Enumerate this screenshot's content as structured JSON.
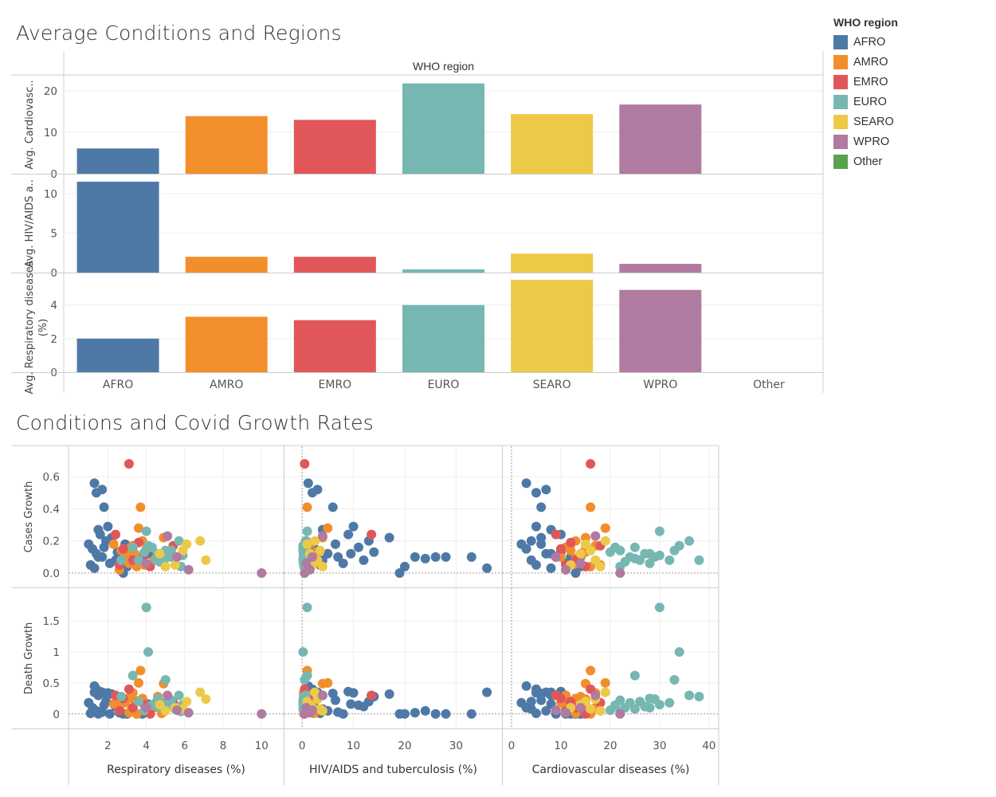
{
  "titles": {
    "bar_section": "Average Conditions and Regions",
    "scatter_section": "Conditions and Covid Growth Rates"
  },
  "legend": {
    "title": "WHO region",
    "items": [
      {
        "name": "AFRO",
        "color": "#4e79a7"
      },
      {
        "name": "AMRO",
        "color": "#f28e2b"
      },
      {
        "name": "EMRO",
        "color": "#e15759"
      },
      {
        "name": "EURO",
        "color": "#76b7b2"
      },
      {
        "name": "SEARO",
        "color": "#edc948"
      },
      {
        "name": "WPRO",
        "color": "#b07aa1"
      },
      {
        "name": "Other",
        "color": "#59a14f"
      }
    ]
  },
  "chart_data": [
    {
      "type": "bar",
      "title": "",
      "header": "WHO region",
      "categories": [
        "AFRO",
        "AMRO",
        "EMRO",
        "EURO",
        "SEARO",
        "WPRO",
        "Other"
      ],
      "panels": [
        {
          "ylabel": "Avg. Cardiovasc..",
          "ylim": [
            0,
            22.5
          ],
          "ticks": [
            0,
            10,
            20
          ],
          "values": [
            6.1,
            13.9,
            13.0,
            21.8,
            14.4,
            16.7,
            null
          ]
        },
        {
          "ylabel": "Avg. HIV/AIDS a..",
          "ylim": [
            0,
            11.8
          ],
          "ticks": [
            0,
            5,
            10
          ],
          "values": [
            11.5,
            2.0,
            2.0,
            0.4,
            2.4,
            1.1,
            null
          ]
        },
        {
          "ylabel": "Avg. Respiratory diseases (%)",
          "ylim": [
            0,
            5.6
          ],
          "ticks": [
            0,
            2,
            4
          ],
          "values": [
            2.0,
            3.3,
            3.1,
            4.0,
            5.5,
            4.9,
            null
          ]
        }
      ]
    },
    {
      "type": "scatter",
      "title": "",
      "rows": [
        {
          "ylabel": "Cases Growth",
          "ylim": [
            -0.03,
            0.72
          ],
          "ticks": [
            0.0,
            0.2,
            0.4,
            0.6
          ],
          "tick_labels": [
            "0.0",
            "0.2",
            "0.4",
            "0.6"
          ]
        },
        {
          "ylabel": "Death Growth",
          "ylim": [
            -0.08,
            1.85
          ],
          "ticks": [
            0,
            0.5,
            1,
            1.5
          ],
          "tick_labels": [
            "0",
            "0.5",
            "1",
            "1.5"
          ]
        }
      ],
      "columns": [
        {
          "xlabel": "Respiratory diseases (%)",
          "xlim": [
            0.2,
            10.9
          ],
          "ticks": [
            2,
            4,
            6,
            8,
            10
          ]
        },
        {
          "xlabel": "HIV/AIDS and tuberculosis (%)",
          "xlim": [
            -2.5,
            38
          ],
          "ticks": [
            0,
            10,
            20,
            30
          ]
        },
        {
          "xlabel": "Cardiovascular diseases (%)",
          "xlim": [
            -0.8,
            41
          ],
          "ticks": [
            0,
            10,
            20,
            30,
            40
          ]
        }
      ],
      "region_order": [
        "AFRO",
        "AMRO",
        "EMRO",
        "EURO",
        "SEARO",
        "WPRO"
      ],
      "series": [
        {
          "name": "AFRO",
          "points": [
            {
              "r": 1.3,
              "h": 1.2,
              "c": 3,
              "g": 0.56,
              "d": 0.45
            },
            {
              "r": 1.4,
              "h": 2.0,
              "c": 5,
              "g": 0.5,
              "d": 0.4
            },
            {
              "r": 1.7,
              "h": 3.0,
              "c": 7,
              "g": 0.52,
              "d": 0.35
            },
            {
              "r": 1.8,
              "h": 6.0,
              "c": 6,
              "g": 0.41,
              "d": 0.33
            },
            {
              "r": 1.5,
              "h": 4.0,
              "c": 8,
              "g": 0.27,
              "d": 0.3
            },
            {
              "r": 1.6,
              "h": 9.0,
              "c": 10,
              "g": 0.24,
              "d": 0.36
            },
            {
              "r": 2.0,
              "h": 10.0,
              "c": 5,
              "g": 0.29,
              "d": 0.34
            },
            {
              "r": 1.9,
              "h": 13.0,
              "c": 4,
              "g": 0.2,
              "d": 0.2
            },
            {
              "r": 2.2,
              "h": 17.0,
              "c": 6,
              "g": 0.22,
              "d": 0.32
            },
            {
              "r": 1.0,
              "h": 1.0,
              "c": 2,
              "g": 0.18,
              "d": 0.18
            },
            {
              "r": 1.2,
              "h": 2.5,
              "c": 3,
              "g": 0.15,
              "d": 0.1
            },
            {
              "r": 1.4,
              "h": 5.0,
              "c": 7,
              "g": 0.12,
              "d": 0.05
            },
            {
              "r": 1.7,
              "h": 7.0,
              "c": 9,
              "g": 0.1,
              "d": 0.03
            },
            {
              "r": 2.1,
              "h": 8.0,
              "c": 11,
              "g": 0.06,
              "d": 0.0
            },
            {
              "r": 2.4,
              "h": 12.0,
              "c": 12,
              "g": 0.08,
              "d": 0.12
            },
            {
              "r": 2.8,
              "h": 19.0,
              "c": 13,
              "g": 0.0,
              "d": 0.0
            },
            {
              "r": 3.0,
              "h": 20.0,
              "c": 14,
              "g": 0.04,
              "d": 0.0
            },
            {
              "r": 2.6,
              "h": 22.0,
              "c": 12,
              "g": 0.1,
              "d": 0.02
            },
            {
              "r": 3.2,
              "h": 24.0,
              "c": 13,
              "g": 0.09,
              "d": 0.05
            },
            {
              "r": 3.5,
              "h": 26.0,
              "c": 14,
              "g": 0.1,
              "d": 0.0
            },
            {
              "r": 3.8,
              "h": 28.0,
              "c": 12,
              "g": 0.1,
              "d": 0.0
            },
            {
              "r": 1.5,
              "h": 33.0,
              "c": 9,
              "g": 0.1,
              "d": 0.0
            },
            {
              "r": 1.3,
              "h": 36.0,
              "c": 8,
              "g": 0.03,
              "d": 0.35
            },
            {
              "r": 2.5,
              "h": 14.0,
              "c": 10,
              "g": 0.13,
              "d": 0.28
            },
            {
              "r": 1.8,
              "h": 11.0,
              "c": 11,
              "g": 0.16,
              "d": 0.14
            },
            {
              "r": 3.3,
              "h": 4.0,
              "c": 4,
              "g": 0.08,
              "d": 0.08
            },
            {
              "r": 2.9,
              "h": 6.5,
              "c": 6,
              "g": 0.18,
              "d": 0.22
            },
            {
              "r": 4.1,
              "h": 9.5,
              "c": 8,
              "g": 0.12,
              "d": 0.16
            },
            {
              "r": 1.1,
              "h": 3.5,
              "c": 5,
              "g": 0.05,
              "d": 0.01
            }
          ]
        },
        {
          "name": "AMRO",
          "points": [
            {
              "r": 3.7,
              "h": 1.0,
              "c": 16,
              "g": 0.41,
              "d": 0.7
            },
            {
              "r": 3.6,
              "h": 5.0,
              "c": 19,
              "g": 0.28,
              "d": 0.5
            },
            {
              "r": 4.9,
              "h": 4.0,
              "c": 15,
              "g": 0.22,
              "d": 0.49
            },
            {
              "r": 3.8,
              "h": 0.8,
              "c": 13,
              "g": 0.2,
              "d": 0.25
            },
            {
              "r": 3.2,
              "h": 1.5,
              "c": 11,
              "g": 0.16,
              "d": 0.3
            },
            {
              "r": 2.7,
              "h": 0.5,
              "c": 12,
              "g": 0.14,
              "d": 0.2
            },
            {
              "r": 3.4,
              "h": 2.0,
              "c": 14,
              "g": 0.12,
              "d": 0.22
            },
            {
              "r": 2.9,
              "h": 1.2,
              "c": 10,
              "g": 0.1,
              "d": 0.18
            },
            {
              "r": 3.0,
              "h": 3.0,
              "c": 15,
              "g": 0.13,
              "d": 0.24
            },
            {
              "r": 4.4,
              "h": 0.6,
              "c": 17,
              "g": 0.08,
              "d": 0.1
            },
            {
              "r": 3.9,
              "h": 1.8,
              "c": 18,
              "g": 0.05,
              "d": 0.05
            },
            {
              "r": 2.3,
              "h": 0.9,
              "c": 12,
              "g": 0.18,
              "d": 0.16
            },
            {
              "r": 3.1,
              "h": 2.5,
              "c": 13,
              "g": 0.06,
              "d": 0.02
            },
            {
              "r": 3.5,
              "h": 0.4,
              "c": 16,
              "g": 0.04,
              "d": 0.0
            },
            {
              "r": 4.0,
              "h": 1.1,
              "c": 15,
              "g": 0.15,
              "d": 0.14
            },
            {
              "r": 2.6,
              "h": 0.7,
              "c": 11,
              "g": 0.02,
              "d": 0.08
            },
            {
              "r": 4.6,
              "h": 1.4,
              "c": 14,
              "g": 0.11,
              "d": 0.28
            },
            {
              "r": 3.3,
              "h": 0.3,
              "c": 17,
              "g": 0.17,
              "d": 0.34
            },
            {
              "r": 4.8,
              "h": 2.2,
              "c": 13,
              "g": 0.09,
              "d": 0.01
            }
          ]
        },
        {
          "name": "EMRO",
          "points": [
            {
              "r": 3.1,
              "h": 0.5,
              "c": 16,
              "g": 0.68,
              "d": 0.4
            },
            {
              "r": 2.4,
              "h": 13.5,
              "c": 9,
              "g": 0.24,
              "d": 0.3
            },
            {
              "r": 3.6,
              "h": 0.8,
              "c": 12,
              "g": 0.19,
              "d": 0.2
            },
            {
              "r": 5.4,
              "h": 0.6,
              "c": 18,
              "g": 0.17,
              "d": 0.18
            },
            {
              "r": 2.8,
              "h": 1.2,
              "c": 10,
              "g": 0.15,
              "d": 0.25
            },
            {
              "r": 3.9,
              "h": 0.3,
              "c": 14,
              "g": 0.12,
              "d": 0.15
            },
            {
              "r": 3.3,
              "h": 0.9,
              "c": 13,
              "g": 0.08,
              "d": 0.1
            },
            {
              "r": 2.6,
              "h": 1.5,
              "c": 11,
              "g": 0.05,
              "d": 0.05
            },
            {
              "r": 4.2,
              "h": 0.4,
              "c": 15,
              "g": 0.04,
              "d": 0.0
            }
          ]
        },
        {
          "name": "EURO",
          "points": [
            {
              "r": 4.0,
              "h": 1.0,
              "c": 30,
              "g": 0.26,
              "d": 1.72
            },
            {
              "r": 4.1,
              "h": 0.2,
              "c": 34,
              "g": 0.17,
              "d": 1.0
            },
            {
              "r": 3.3,
              "h": 1.0,
              "c": 25,
              "g": 0.16,
              "d": 0.62
            },
            {
              "r": 5.0,
              "h": 0.5,
              "c": 33,
              "g": 0.14,
              "d": 0.55
            },
            {
              "r": 5.7,
              "h": 0.7,
              "c": 36,
              "g": 0.2,
              "d": 0.3
            },
            {
              "r": 2.7,
              "h": 0.3,
              "c": 38,
              "g": 0.08,
              "d": 0.28
            },
            {
              "r": 4.6,
              "h": 0.4,
              "c": 28,
              "g": 0.12,
              "d": 0.25
            },
            {
              "r": 5.3,
              "h": 0.2,
              "c": 22,
              "g": 0.14,
              "d": 0.22
            },
            {
              "r": 4.8,
              "h": 0.3,
              "c": 24,
              "g": 0.1,
              "d": 0.18
            },
            {
              "r": 3.6,
              "h": 0.6,
              "c": 26,
              "g": 0.08,
              "d": 0.2
            },
            {
              "r": 5.9,
              "h": 0.5,
              "c": 30,
              "g": 0.11,
              "d": 0.15
            },
            {
              "r": 4.3,
              "h": 0.2,
              "c": 21,
              "g": 0.16,
              "d": 0.14
            },
            {
              "r": 5.1,
              "h": 0.4,
              "c": 27,
              "g": 0.12,
              "d": 0.12
            },
            {
              "r": 4.7,
              "h": 0.3,
              "c": 23,
              "g": 0.07,
              "d": 0.1
            },
            {
              "r": 5.5,
              "h": 0.2,
              "c": 25,
              "g": 0.09,
              "d": 0.08
            },
            {
              "r": 3.9,
              "h": 0.5,
              "c": 20,
              "g": 0.13,
              "d": 0.06
            },
            {
              "r": 5.2,
              "h": 0.3,
              "c": 29,
              "g": 0.1,
              "d": 0.24
            },
            {
              "r": 4.5,
              "h": 0.2,
              "c": 32,
              "g": 0.08,
              "d": 0.18
            },
            {
              "r": 5.8,
              "h": 0.4,
              "c": 22,
              "g": 0.04,
              "d": 0.04
            },
            {
              "r": 4.9,
              "h": 0.3,
              "c": 28,
              "g": 0.06,
              "d": 0.1
            }
          ]
        },
        {
          "name": "SEARO",
          "points": [
            {
              "r": 6.8,
              "h": 2.5,
              "c": 19,
              "g": 0.2,
              "d": 0.35
            },
            {
              "r": 7.1,
              "h": 3.0,
              "c": 17,
              "g": 0.08,
              "d": 0.24
            },
            {
              "r": 6.1,
              "h": 1.0,
              "c": 15,
              "g": 0.18,
              "d": 0.2
            },
            {
              "r": 5.5,
              "h": 2.0,
              "c": 12,
              "g": 0.05,
              "d": 0.1
            },
            {
              "r": 5.0,
              "h": 4.0,
              "c": 18,
              "g": 0.04,
              "d": 0.05
            },
            {
              "r": 4.7,
              "h": 1.5,
              "c": 14,
              "g": 0.12,
              "d": 0.15
            },
            {
              "r": 5.9,
              "h": 3.5,
              "c": 16,
              "g": 0.14,
              "d": 0.08
            }
          ]
        },
        {
          "name": "WPRO",
          "points": [
            {
              "r": 5.1,
              "h": 4.0,
              "c": 17,
              "g": 0.23,
              "d": 0.3
            },
            {
              "r": 10.0,
              "h": 0.5,
              "c": 22,
              "g": 0.0,
              "d": 0.0
            },
            {
              "r": 6.2,
              "h": 1.5,
              "c": 11,
              "g": 0.02,
              "d": 0.02
            },
            {
              "r": 4.0,
              "h": 0.8,
              "c": 14,
              "g": 0.06,
              "d": 0.1
            },
            {
              "r": 5.6,
              "h": 2.0,
              "c": 9,
              "g": 0.1,
              "d": 0.06
            }
          ]
        }
      ]
    }
  ]
}
